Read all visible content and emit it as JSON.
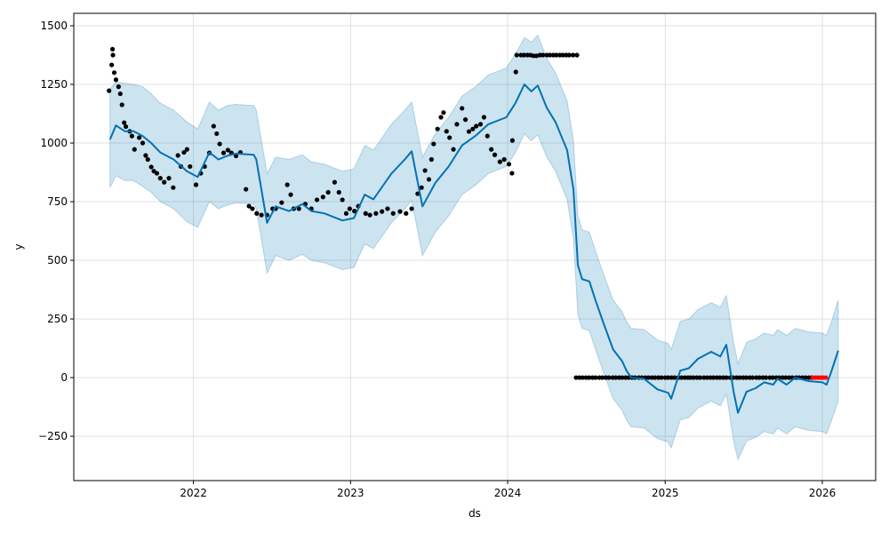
{
  "chart_data": {
    "type": "line",
    "title": "",
    "xlabel": "ds",
    "ylabel": "y",
    "xlim": [
      "2021-03-29",
      "2026-05-05"
    ],
    "ylim": [
      -439,
      1553
    ],
    "grid": true,
    "x_ticks": [
      "2022",
      "2023",
      "2024",
      "2025",
      "2026"
    ],
    "y_ticks": [
      -250,
      0,
      250,
      500,
      750,
      1000,
      1250,
      1500
    ],
    "y_tick_labels": [
      "−250",
      "0",
      "250",
      "500",
      "750",
      "1000",
      "1250",
      "1500"
    ],
    "colors": {
      "forecast": "#0072B2",
      "interval": "#0072B2",
      "observed": "#000000",
      "highlight": "#ff0000"
    },
    "forecast": {
      "dates": [
        "2021-06-21",
        "2021-07-05",
        "2021-07-26",
        "2021-08-15",
        "2021-09-05",
        "2021-09-25",
        "2021-10-16",
        "2021-11-16",
        "2021-12-17",
        "2022-01-11",
        "2022-02-07",
        "2022-02-28",
        "2022-03-20",
        "2022-04-10",
        "2022-05-21",
        "2022-05-27",
        "2022-06-21",
        "2022-07-11",
        "2022-08-11",
        "2022-09-11",
        "2022-10-02",
        "2022-11-01",
        "2022-12-13",
        "2023-01-09",
        "2023-02-03",
        "2023-02-23",
        "2023-04-06",
        "2023-05-07",
        "2023-05-23",
        "2023-06-17",
        "2023-07-17",
        "2023-08-17",
        "2023-09-17",
        "2023-10-18",
        "2023-11-17",
        "2023-12-29",
        "2024-01-19",
        "2024-02-09",
        "2024-02-25",
        "2024-03-11",
        "2024-04-01",
        "2024-04-21",
        "2024-05-18",
        "2024-06-02",
        "2024-06-12",
        "2024-06-22",
        "2024-07-09",
        "2024-07-23",
        "2024-08-13",
        "2024-09-02",
        "2024-09-23",
        "2024-10-03",
        "2024-10-14",
        "2024-11-13",
        "2024-12-14",
        "2025-01-08",
        "2025-01-15",
        "2025-02-05",
        "2025-02-25",
        "2025-03-18",
        "2025-04-18",
        "2025-05-09",
        "2025-05-23",
        "2025-06-09",
        "2025-06-19",
        "2025-07-09",
        "2025-07-30",
        "2025-08-19",
        "2025-09-09",
        "2025-09-19",
        "2025-10-10",
        "2025-10-30",
        "2025-11-30",
        "2026-01-01",
        "2026-01-11",
        "2026-01-21",
        "2026-02-07"
      ],
      "yhat": [
        1015,
        1075,
        1050,
        1050,
        1030,
        1000,
        960,
        930,
        880,
        855,
        960,
        930,
        945,
        955,
        950,
        930,
        660,
        730,
        710,
        740,
        710,
        700,
        670,
        680,
        780,
        760,
        870,
        930,
        965,
        730,
        830,
        900,
        990,
        1030,
        1080,
        1110,
        1170,
        1250,
        1220,
        1245,
        1150,
        1090,
        970,
        800,
        480,
        420,
        410,
        330,
        220,
        120,
        70,
        30,
        0,
        -5,
        -50,
        -65,
        -90,
        30,
        40,
        80,
        110,
        90,
        140,
        -60,
        -150,
        -60,
        -45,
        -20,
        -30,
        -5,
        -30,
        0,
        -15,
        -20,
        -30,
        20,
        115
      ],
      "yhat_lower": [
        810,
        860,
        840,
        840,
        815,
        790,
        750,
        720,
        665,
        640,
        750,
        720,
        735,
        745,
        740,
        720,
        445,
        520,
        500,
        525,
        500,
        490,
        460,
        470,
        570,
        550,
        660,
        720,
        755,
        520,
        620,
        690,
        780,
        820,
        870,
        900,
        960,
        1040,
        1010,
        1035,
        940,
        880,
        760,
        590,
        270,
        210,
        200,
        120,
        10,
        -90,
        -140,
        -180,
        -210,
        -215,
        -260,
        -275,
        -300,
        -180,
        -170,
        -130,
        -100,
        -120,
        -70,
        -270,
        -350,
        -270,
        -255,
        -230,
        -240,
        -215,
        -240,
        -210,
        -225,
        -230,
        -240,
        -190,
        -100
      ],
      "yhat_upper": [
        1230,
        1260,
        1255,
        1250,
        1240,
        1210,
        1170,
        1140,
        1090,
        1060,
        1175,
        1140,
        1160,
        1165,
        1160,
        1140,
        870,
        940,
        930,
        950,
        920,
        910,
        880,
        890,
        990,
        970,
        1080,
        1140,
        1175,
        940,
        1040,
        1110,
        1200,
        1240,
        1290,
        1320,
        1380,
        1450,
        1430,
        1460,
        1360,
        1300,
        1180,
        1010,
        690,
        630,
        620,
        540,
        430,
        330,
        280,
        240,
        210,
        205,
        160,
        145,
        120,
        240,
        250,
        290,
        320,
        300,
        350,
        150,
        60,
        150,
        165,
        190,
        180,
        205,
        180,
        210,
        195,
        190,
        180,
        230,
        330
      ]
    },
    "observed": [
      [
        "2021-06-19",
        1223
      ],
      [
        "2021-06-25",
        1333
      ],
      [
        "2021-06-27",
        1400
      ],
      [
        "2021-06-28",
        1375
      ],
      [
        "2021-07-01",
        1300
      ],
      [
        "2021-07-05",
        1270
      ],
      [
        "2021-07-11",
        1240
      ],
      [
        "2021-07-15",
        1210
      ],
      [
        "2021-07-19",
        1163
      ],
      [
        "2021-07-24",
        1087
      ],
      [
        "2021-07-28",
        1070
      ],
      [
        "2021-08-06",
        1050
      ],
      [
        "2021-08-11",
        1030
      ],
      [
        "2021-08-17",
        973
      ],
      [
        "2021-08-28",
        1023
      ],
      [
        "2021-09-05",
        1000
      ],
      [
        "2021-09-12",
        947
      ],
      [
        "2021-09-17",
        930
      ],
      [
        "2021-09-25",
        898
      ],
      [
        "2021-10-01",
        880
      ],
      [
        "2021-10-08",
        871
      ],
      [
        "2021-10-16",
        850
      ],
      [
        "2021-10-25",
        833
      ],
      [
        "2021-11-05",
        850
      ],
      [
        "2021-11-15",
        810
      ],
      [
        "2021-11-26",
        947
      ],
      [
        "2021-12-03",
        900
      ],
      [
        "2021-12-10",
        960
      ],
      [
        "2021-12-17",
        973
      ],
      [
        "2021-12-24",
        900
      ],
      [
        "2022-01-07",
        822
      ],
      [
        "2022-01-18",
        871
      ],
      [
        "2022-01-27",
        900
      ],
      [
        "2022-02-07",
        958
      ],
      [
        "2022-02-17",
        1072
      ],
      [
        "2022-02-24",
        1040
      ],
      [
        "2022-03-03",
        996
      ],
      [
        "2022-03-12",
        958
      ],
      [
        "2022-03-22",
        970
      ],
      [
        "2022-03-30",
        958
      ],
      [
        "2022-04-10",
        945
      ],
      [
        "2022-04-20",
        960
      ],
      [
        "2022-05-03",
        803
      ],
      [
        "2022-05-10",
        731
      ],
      [
        "2022-05-18",
        720
      ],
      [
        "2022-05-28",
        700
      ],
      [
        "2022-06-08",
        693
      ],
      [
        "2022-06-21",
        693
      ],
      [
        "2022-07-04",
        720
      ],
      [
        "2022-07-11",
        720
      ],
      [
        "2022-07-25",
        746
      ],
      [
        "2022-08-07",
        822
      ],
      [
        "2022-08-15",
        780
      ],
      [
        "2022-08-22",
        720
      ],
      [
        "2022-09-03",
        720
      ],
      [
        "2022-09-18",
        740
      ],
      [
        "2022-10-02",
        720
      ],
      [
        "2022-10-15",
        758
      ],
      [
        "2022-10-29",
        770
      ],
      [
        "2022-11-10",
        790
      ],
      [
        "2022-11-25",
        833
      ],
      [
        "2022-12-05",
        790
      ],
      [
        "2022-12-13",
        758
      ],
      [
        "2022-12-22",
        700
      ],
      [
        "2022-12-30",
        720
      ],
      [
        "2023-01-10",
        710
      ],
      [
        "2023-01-19",
        731
      ],
      [
        "2023-02-05",
        700
      ],
      [
        "2023-02-15",
        693
      ],
      [
        "2023-03-01",
        700
      ],
      [
        "2023-03-15",
        708
      ],
      [
        "2023-03-28",
        720
      ],
      [
        "2023-04-10",
        700
      ],
      [
        "2023-04-26",
        708
      ],
      [
        "2023-05-10",
        700
      ],
      [
        "2023-05-23",
        720
      ],
      [
        "2023-06-06",
        784
      ],
      [
        "2023-06-15",
        810
      ],
      [
        "2023-06-23",
        883
      ],
      [
        "2023-07-02",
        845
      ],
      [
        "2023-07-08",
        930
      ],
      [
        "2023-07-13",
        996
      ],
      [
        "2023-07-22",
        1060
      ],
      [
        "2023-07-30",
        1110
      ],
      [
        "2023-08-05",
        1130
      ],
      [
        "2023-08-12",
        1050
      ],
      [
        "2023-08-19",
        1023
      ],
      [
        "2023-08-28",
        973
      ],
      [
        "2023-09-05",
        1080
      ],
      [
        "2023-09-17",
        1148
      ],
      [
        "2023-09-25",
        1100
      ],
      [
        "2023-10-03",
        1049
      ],
      [
        "2023-10-12",
        1060
      ],
      [
        "2023-10-20",
        1072
      ],
      [
        "2023-10-30",
        1080
      ],
      [
        "2023-11-07",
        1110
      ],
      [
        "2023-11-15",
        1030
      ],
      [
        "2023-11-24",
        973
      ],
      [
        "2023-12-02",
        950
      ],
      [
        "2023-12-14",
        920
      ],
      [
        "2023-12-24",
        930
      ],
      [
        "2024-01-04",
        910
      ],
      [
        "2024-01-11",
        871
      ],
      [
        "2024-01-12",
        1011
      ],
      [
        "2024-01-20",
        1303
      ],
      [
        "2024-01-22",
        1375
      ],
      [
        "2024-02-01",
        1375
      ],
      [
        "2024-02-08",
        1375
      ],
      [
        "2024-02-16",
        1375
      ],
      [
        "2024-02-23",
        1375
      ],
      [
        "2024-03-01",
        1372
      ],
      [
        "2024-03-08",
        1372
      ],
      [
        "2024-03-16",
        1375
      ],
      [
        "2024-03-23",
        1375
      ],
      [
        "2024-04-01",
        1375
      ],
      [
        "2024-04-08",
        1375
      ],
      [
        "2024-04-16",
        1375
      ],
      [
        "2024-04-23",
        1375
      ],
      [
        "2024-05-01",
        1375
      ],
      [
        "2024-05-08",
        1375
      ],
      [
        "2024-05-16",
        1375
      ],
      [
        "2024-05-23",
        1375
      ],
      [
        "2024-06-01",
        1375
      ],
      [
        "2024-06-10",
        1375
      ],
      [
        "2024-06-08",
        0
      ],
      [
        "2024-06-16",
        0
      ],
      [
        "2024-06-23",
        0
      ],
      [
        "2024-07-01",
        0
      ],
      [
        "2024-07-08",
        0
      ],
      [
        "2024-07-16",
        0
      ],
      [
        "2024-07-23",
        0
      ],
      [
        "2024-08-01",
        0
      ],
      [
        "2024-08-08",
        0
      ],
      [
        "2024-08-16",
        0
      ],
      [
        "2024-08-23",
        0
      ],
      [
        "2024-09-01",
        0
      ],
      [
        "2024-09-08",
        0
      ],
      [
        "2024-09-16",
        0
      ],
      [
        "2024-09-23",
        0
      ],
      [
        "2024-10-01",
        0
      ],
      [
        "2024-10-08",
        0
      ],
      [
        "2024-10-16",
        0
      ],
      [
        "2024-10-23",
        0
      ],
      [
        "2024-11-01",
        0
      ],
      [
        "2024-11-08",
        0
      ],
      [
        "2024-11-16",
        0
      ],
      [
        "2024-11-23",
        0
      ],
      [
        "2024-12-01",
        0
      ],
      [
        "2024-12-08",
        0
      ],
      [
        "2024-12-16",
        0
      ],
      [
        "2024-12-23",
        0
      ],
      [
        "2025-01-01",
        0
      ],
      [
        "2025-01-08",
        0
      ],
      [
        "2025-01-16",
        0
      ],
      [
        "2025-01-23",
        0
      ],
      [
        "2025-02-01",
        0
      ],
      [
        "2025-02-08",
        0
      ],
      [
        "2025-02-16",
        0
      ],
      [
        "2025-02-23",
        0
      ],
      [
        "2025-03-01",
        0
      ],
      [
        "2025-03-08",
        0
      ],
      [
        "2025-03-16",
        0
      ],
      [
        "2025-03-23",
        0
      ],
      [
        "2025-04-01",
        0
      ],
      [
        "2025-04-08",
        0
      ],
      [
        "2025-04-16",
        0
      ],
      [
        "2025-04-23",
        0
      ],
      [
        "2025-05-01",
        0
      ],
      [
        "2025-05-08",
        0
      ],
      [
        "2025-05-16",
        0
      ],
      [
        "2025-05-23",
        0
      ],
      [
        "2025-06-01",
        0
      ],
      [
        "2025-06-08",
        0
      ],
      [
        "2025-06-16",
        0
      ],
      [
        "2025-06-23",
        0
      ],
      [
        "2025-07-01",
        0
      ],
      [
        "2025-07-08",
        0
      ],
      [
        "2025-07-16",
        0
      ],
      [
        "2025-07-23",
        0
      ],
      [
        "2025-08-01",
        0
      ],
      [
        "2025-08-08",
        0
      ],
      [
        "2025-08-16",
        0
      ],
      [
        "2025-08-23",
        0
      ],
      [
        "2025-09-01",
        0
      ],
      [
        "2025-09-08",
        0
      ],
      [
        "2025-09-16",
        0
      ],
      [
        "2025-09-23",
        0
      ],
      [
        "2025-10-01",
        0
      ],
      [
        "2025-10-08",
        0
      ],
      [
        "2025-10-16",
        0
      ],
      [
        "2025-10-23",
        0
      ],
      [
        "2025-11-01",
        0
      ],
      [
        "2025-11-08",
        0
      ],
      [
        "2025-11-16",
        0
      ],
      [
        "2025-11-23",
        0
      ],
      [
        "2025-12-01",
        0
      ],
      [
        "2025-12-08",
        0
      ]
    ],
    "highlighted": [
      [
        "2025-12-10",
        0
      ],
      [
        "2025-12-16",
        0
      ],
      [
        "2025-12-22",
        0
      ],
      [
        "2025-12-28",
        0
      ],
      [
        "2026-01-03",
        0
      ],
      [
        "2026-01-09",
        0
      ]
    ]
  }
}
